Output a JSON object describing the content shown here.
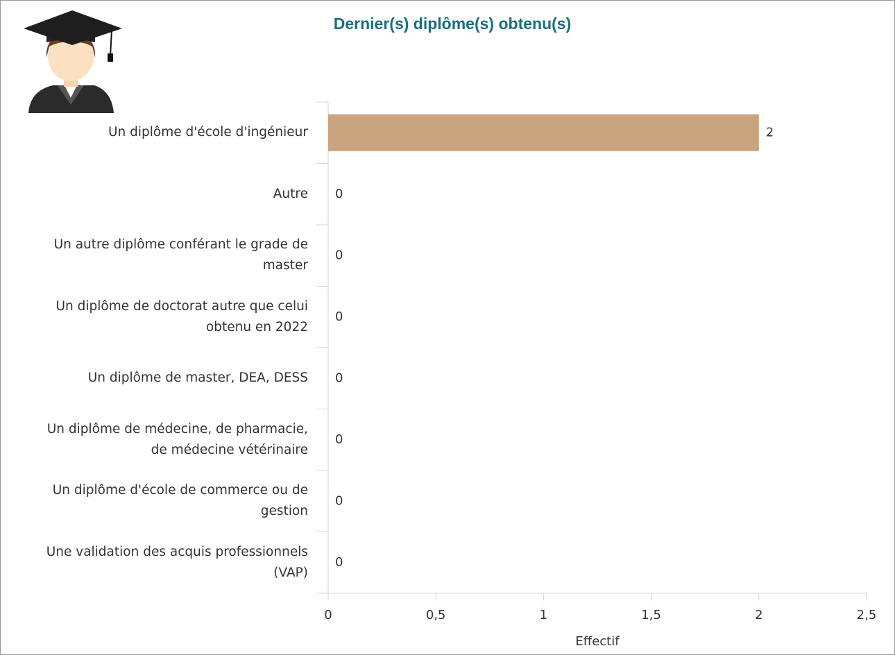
{
  "chart_data": {
    "type": "bar",
    "orientation": "horizontal",
    "title": "Dernier(s) diplôme(s) obtenu(s)",
    "categories": [
      "Un diplôme d'école d'ingénieur",
      "Autre",
      "Un autre diplôme conférant le grade de master",
      "Un diplôme de doctorat autre que celui obtenu en 2022",
      "Un diplôme de master, DEA, DESS",
      "Un diplôme de médecine, de pharmacie, de médecine vétérinaire",
      "Un diplôme d'école de commerce ou de gestion",
      "Une validation des acquis professionnels (VAP)"
    ],
    "values": [
      2,
      0,
      0,
      0,
      0,
      0,
      0,
      0
    ],
    "color": "#c8a57f",
    "xlabel": "Effectif",
    "xlim": [
      0,
      2.5
    ],
    "xticks": [
      0,
      {
        "value": 0.5,
        "label": "0,5"
      },
      1,
      {
        "value": 1.5,
        "label": "1,5"
      },
      2,
      {
        "value": 2.5,
        "label": "2,5"
      }
    ],
    "grid": false
  }
}
